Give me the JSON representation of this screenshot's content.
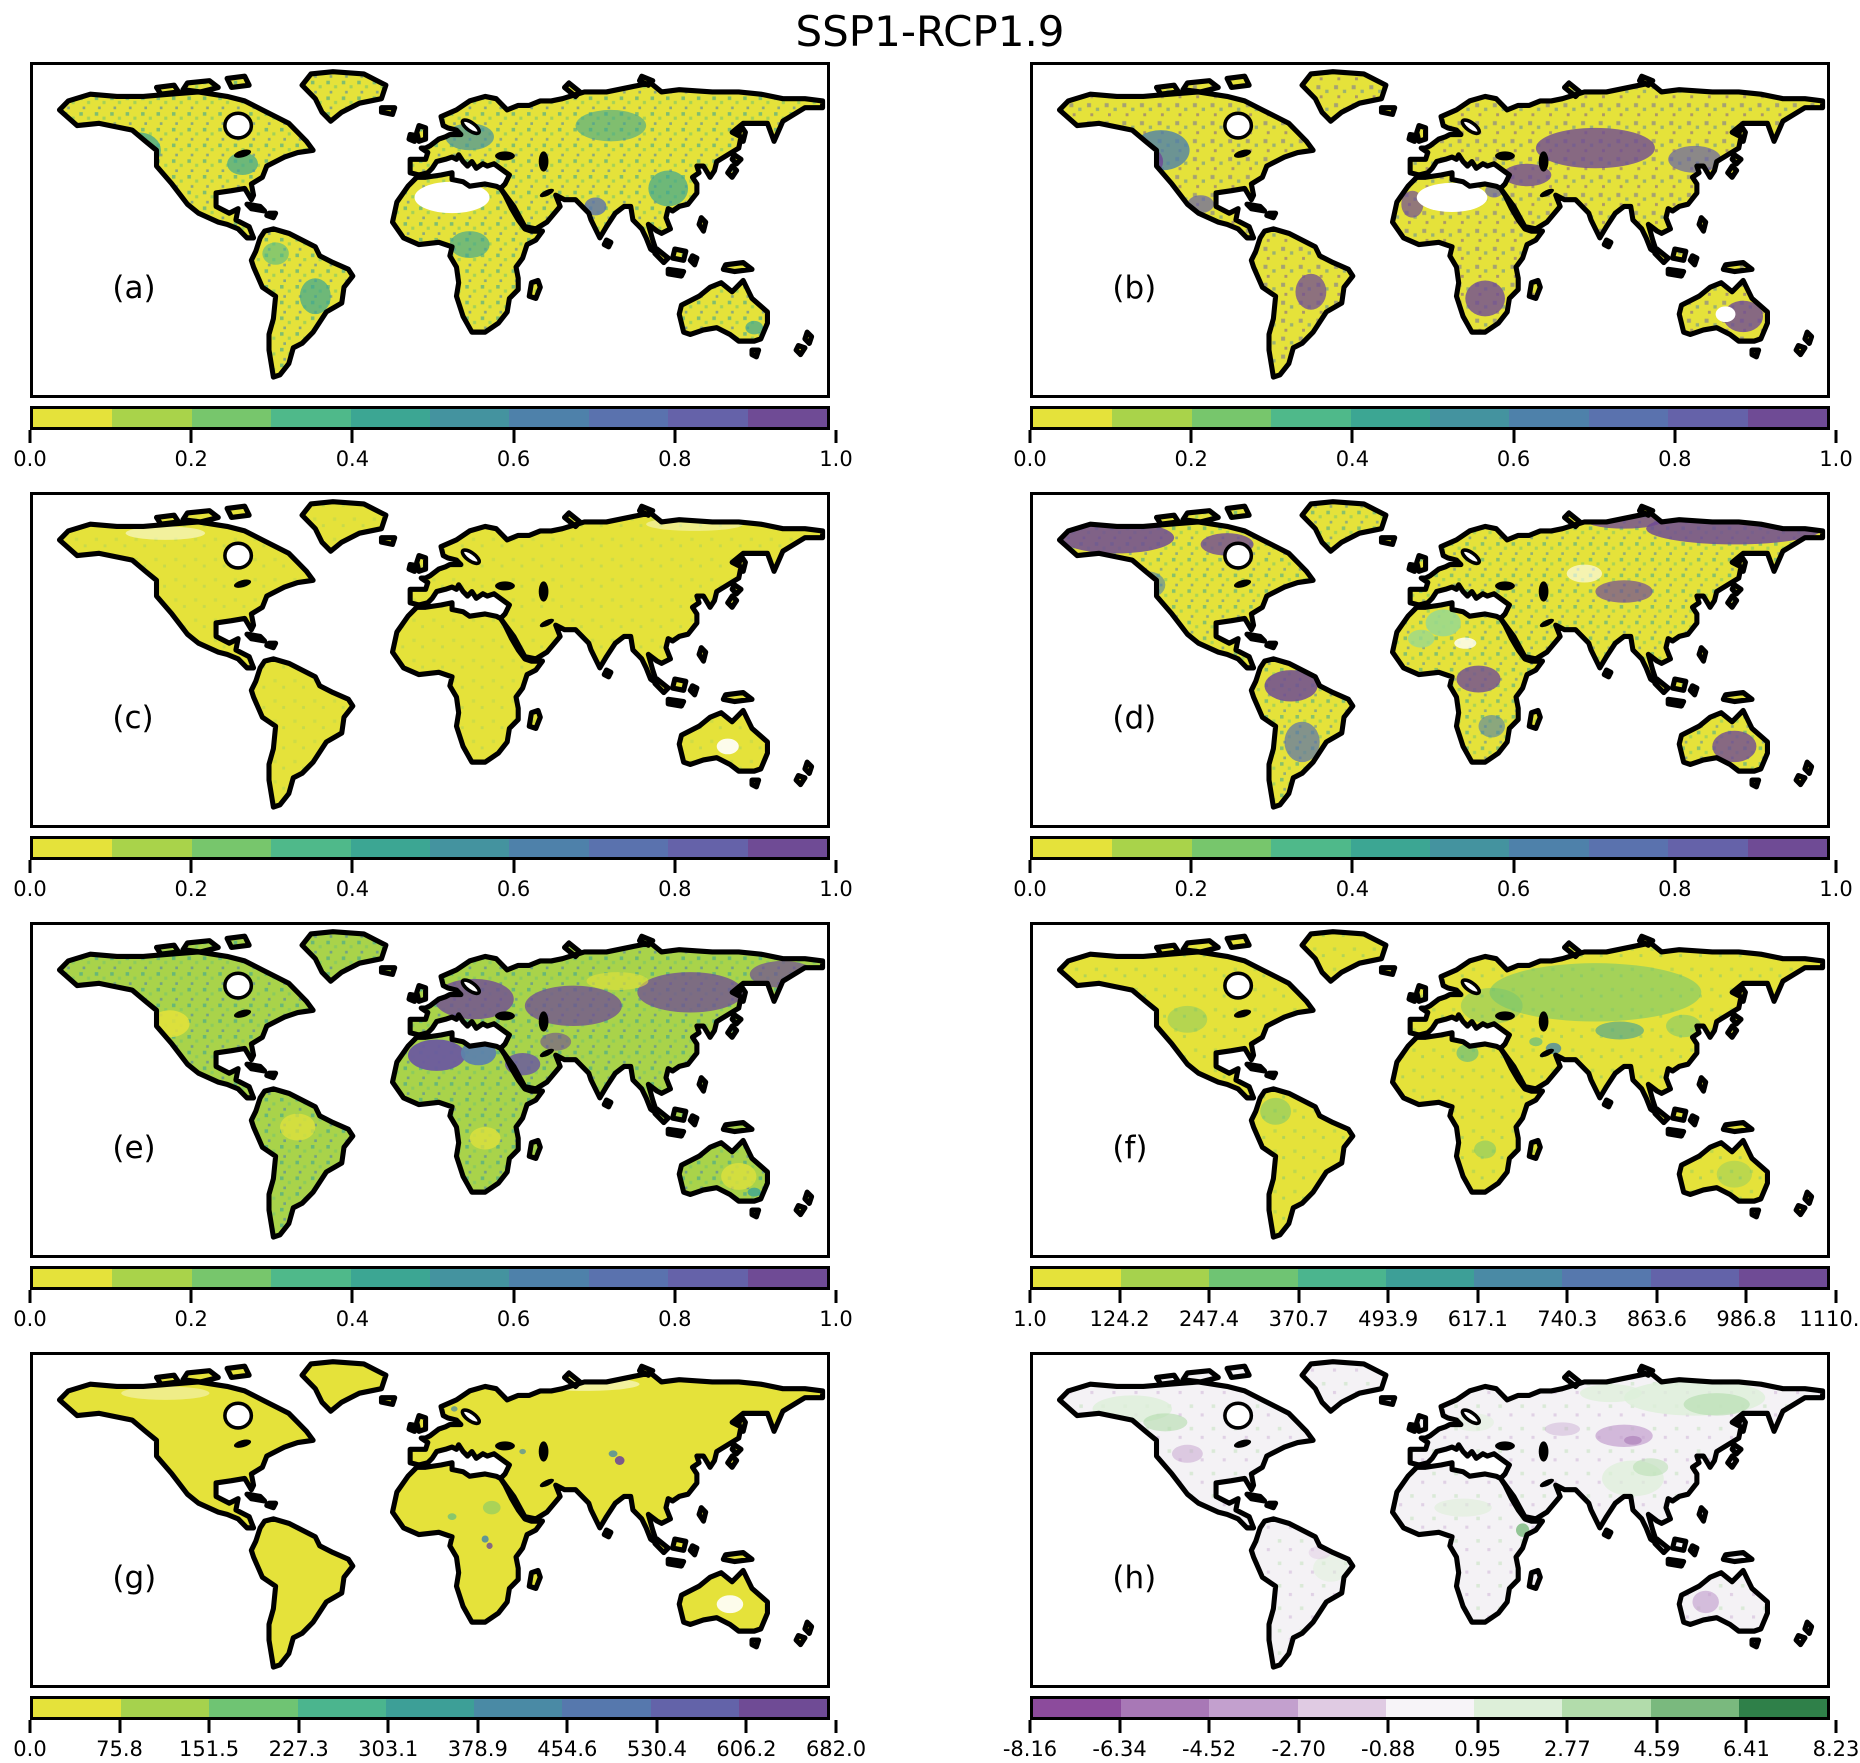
{
  "title": "SSP1-RCP1.9",
  "palette": {
    "ocean": "#ffffff",
    "coast": "#000000",
    "viridis10": [
      "#e5e23a",
      "#a9d34a",
      "#77c66c",
      "#4fb98a",
      "#3ca693",
      "#44939f",
      "#4e81aa",
      "#5a72ae",
      "#6562a9",
      "#6f4b95"
    ],
    "viridis9": [
      "#e5e23a",
      "#a6d24d",
      "#6fc473",
      "#4bb58e",
      "#3d9f97",
      "#4a8aa5",
      "#5678ad",
      "#6363a9",
      "#6f4b95"
    ],
    "prgn9": [
      "#8c4b9c",
      "#a878b6",
      "#c3a0ce",
      "#e0cbe3",
      "#f7f4f8",
      "#ddefd9",
      "#b2dcab",
      "#7ab97e",
      "#2f8049"
    ],
    "extra": {
      "nodata": "#ffffff",
      "slate_purple": "#6b5a9e",
      "slate_blue": "#5d82ab",
      "sahara_green": "#9bd98c",
      "diff_base": "#f4f2f5"
    }
  },
  "panels": [
    {
      "id": "a",
      "label": "(a)",
      "map": {
        "base": "#e5e23a"
      },
      "colorbar": {
        "colors_ref": "viridis10",
        "ticks": [
          "0.0",
          "0.2",
          "0.4",
          "0.6",
          "0.8",
          "1.0"
        ]
      }
    },
    {
      "id": "b",
      "label": "(b)",
      "map": {
        "base": "#e5e23a"
      },
      "colorbar": {
        "colors_ref": "viridis10",
        "ticks": [
          "0.0",
          "0.2",
          "0.4",
          "0.6",
          "0.8",
          "1.0"
        ]
      }
    },
    {
      "id": "c",
      "label": "(c)",
      "map": {
        "base": "#e5e23a"
      },
      "colorbar": {
        "colors_ref": "viridis10",
        "ticks": [
          "0.0",
          "0.2",
          "0.4",
          "0.6",
          "0.8",
          "1.0"
        ]
      }
    },
    {
      "id": "d",
      "label": "(d)",
      "map": {
        "base": "#e5e23a"
      },
      "colorbar": {
        "colors_ref": "viridis10",
        "ticks": [
          "0.0",
          "0.2",
          "0.4",
          "0.6",
          "0.8",
          "1.0"
        ]
      }
    },
    {
      "id": "e",
      "label": "(e)",
      "map": {
        "base": "#a9d34a"
      },
      "colorbar": {
        "colors_ref": "viridis10",
        "ticks": [
          "0.0",
          "0.2",
          "0.4",
          "0.6",
          "0.8",
          "1.0"
        ]
      }
    },
    {
      "id": "f",
      "label": "(f)",
      "map": {
        "base": "#e5e23a"
      },
      "colorbar": {
        "colors_ref": "viridis9",
        "ticks": [
          "1.0",
          "124.2",
          "247.4",
          "370.7",
          "493.9",
          "617.1",
          "740.3",
          "863.6",
          "986.8",
          "1110.0"
        ]
      }
    },
    {
      "id": "g",
      "label": "(g)",
      "map": {
        "base": "#e5e23a"
      },
      "colorbar": {
        "colors_ref": "viridis9",
        "ticks": [
          "0.0",
          "75.8",
          "151.5",
          "227.3",
          "303.1",
          "378.9",
          "454.6",
          "530.4",
          "606.2",
          "682.0"
        ]
      }
    },
    {
      "id": "h",
      "label": "(h)",
      "map": {
        "base": "#f4f2f5"
      },
      "colorbar": {
        "colors_ref": "prgn9",
        "ticks": [
          "-8.16",
          "-6.34",
          "-4.52",
          "-2.70",
          "-0.88",
          "0.95",
          "2.77",
          "4.59",
          "6.41",
          "8.23"
        ]
      }
    }
  ],
  "chart_data": [
    {
      "type": "heatmap",
      "panel": "(a)",
      "title": "SSP1-RCP1.9",
      "projection": "global equirectangular map, white ocean, thick black coastlines",
      "colormap": "discrete viridis reversed (yellow to purple), 10 bins",
      "value_range": [
        0.0,
        1.0
      ],
      "colorbar_ticks": [
        0.0,
        0.2,
        0.4,
        0.6,
        0.8,
        1.0
      ],
      "pattern": "mostly low (yellow) land with teal/blue mid-value patches over western North America, Europe, southern Siberia, India/China, central Africa and southern Brazil; Sahara and high Arctic blank"
    },
    {
      "type": "heatmap",
      "panel": "(b)",
      "colormap": "discrete viridis reversed (yellow to purple), 10 bins",
      "value_range": [
        0.0,
        1.0
      ],
      "colorbar_ticks": [
        0.0,
        0.2,
        0.4,
        0.6,
        0.8,
        1.0
      ],
      "pattern": "yellow base with large high-value purple/blue regions: western USA, Mexico, central Asia belt, Turkey-Iran, edges of Sahara, southern Africa, southern Brazil and Australia; Sahara interior blank"
    },
    {
      "type": "heatmap",
      "panel": "(c)",
      "colormap": "discrete viridis reversed (yellow to purple), 10 bins",
      "value_range": [
        0.0,
        1.0
      ],
      "colorbar_ticks": [
        0.0,
        0.2,
        0.4,
        0.6,
        0.8,
        1.0
      ],
      "pattern": "nearly uniform low values (yellow) over all land; sparse tiny green speckles; small blank patches in central Australia"
    },
    {
      "type": "heatmap",
      "panel": "(d)",
      "colormap": "discrete viridis reversed (yellow to purple), 10 bins",
      "value_range": [
        0.0,
        1.0
      ],
      "colorbar_ticks": [
        0.0,
        0.2,
        0.4,
        0.6,
        0.8,
        1.0
      ],
      "pattern": "high purple values across Arctic North America and northeastern Siberia, Amazon basin, central Africa, Tibet and interior Australia; noisy yellow-green mid-latitudes; light-green flat country blocks in Sahara"
    },
    {
      "type": "heatmap",
      "panel": "(e)",
      "colormap": "discrete viridis reversed (yellow to purple), 10 bins",
      "value_range": [
        0.0,
        1.0
      ],
      "colorbar_ticks": [
        0.0,
        0.2,
        0.4,
        0.6,
        0.8,
        1.0
      ],
      "pattern": "purple belt across Europe, Middle East and northern Eurasia; flat slate-purple/blue country polygons over Sahara and Arabia; green-yellow mix over Americas, southern Africa and Australia"
    },
    {
      "type": "heatmap",
      "panel": "(f)",
      "colormap": "discrete viridis reversed (yellow to purple), 9 bins",
      "value_range": [
        1.0,
        1110.0
      ],
      "colorbar_ticks": [
        1.0,
        124.2,
        247.4,
        370.7,
        493.9,
        617.1,
        740.3,
        863.6,
        986.8,
        1110.0
      ],
      "pattern": "all land low (yellow) with green/teal band over Europe-central Asia-Siberia, Tibet, a teal spot near the Persian Gulf, and light green patches in central USA, northern South America, Libya, southern Africa, Australia"
    },
    {
      "type": "heatmap",
      "panel": "(g)",
      "colormap": "discrete viridis reversed (yellow to purple), 9 bins",
      "value_range": [
        0.0,
        682.0
      ],
      "colorbar_ticks": [
        0.0,
        75.8,
        151.5,
        227.3,
        303.1,
        378.9,
        454.6,
        530.4,
        606.2,
        682.0
      ],
      "pattern": "nearly uniform low values (yellow); isolated high teal/purple spots at the Himalaya/Bangladesh, Caucasus, Norway and equatorial East Africa; blank patches in interior Australia and high Arctic"
    },
    {
      "type": "heatmap",
      "panel": "(h)",
      "colormap": "discrete PRGn (purple negative to green positive), 9 bins",
      "value_range": [
        -8.16,
        8.23
      ],
      "colorbar_ticks": [
        -8.16,
        -6.34,
        -4.52,
        -2.7,
        -0.88,
        0.95,
        2.77,
        4.59,
        6.41,
        8.23
      ],
      "pattern": "difference map, mostly near zero (white); light green gains over Canada, Siberia, India/China, Sahel and eastern Brazil; light purple losses over Mongolia/central Asia, central USA and western Australia"
    }
  ]
}
